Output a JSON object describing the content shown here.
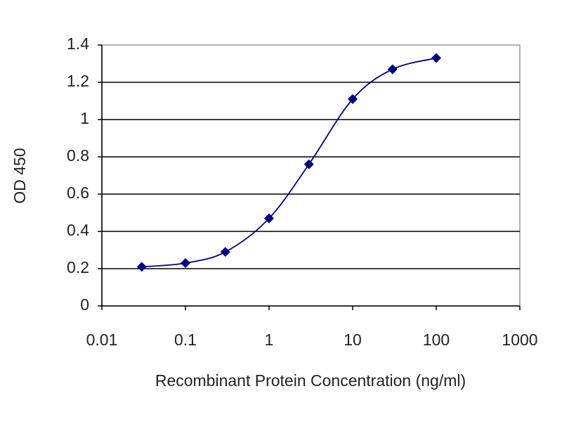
{
  "chart_data": {
    "type": "line",
    "xlabel": "Recombinant Protein Concentration (ng/ml)",
    "ylabel": "OD 450",
    "x": [
      0.03,
      0.1,
      0.3,
      1,
      3,
      10,
      30,
      100
    ],
    "values": [
      0.21,
      0.23,
      0.29,
      0.47,
      0.76,
      1.11,
      1.27,
      1.33
    ],
    "color": "#000080",
    "xscale": "log",
    "xlim": [
      0.01,
      1000
    ],
    "xticks": [
      0.01,
      0.1,
      1,
      10,
      100,
      1000
    ],
    "ylim": [
      0,
      1.4
    ],
    "yticks": [
      0,
      0.2,
      0.4,
      0.6,
      0.8,
      1,
      1.2,
      1.4
    ],
    "grid": true
  }
}
